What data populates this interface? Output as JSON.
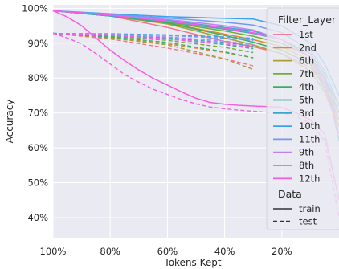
{
  "chart_data": {
    "type": "line",
    "title": "",
    "xlabel": "Tokens Kept",
    "ylabel": "Accuracy",
    "xlim": [
      100,
      0
    ],
    "ylim": [
      34,
      101
    ],
    "x_ticks": [
      100,
      80,
      60,
      40,
      20
    ],
    "x_tick_labels": [
      "100%",
      "80%",
      "60%",
      "40%",
      "20%"
    ],
    "y_ticks": [
      40,
      50,
      60,
      70,
      80,
      90,
      100
    ],
    "y_tick_labels": [
      "40%",
      "50%",
      "60%",
      "70%",
      "80%",
      "90%",
      "100%"
    ],
    "grid": true,
    "legend_position": "right",
    "legend_title": "Filter_Layer",
    "style_legend_title": "Data",
    "style_legend": [
      {
        "label": "train",
        "dash": "solid"
      },
      {
        "label": "test",
        "dash": "dashed"
      }
    ],
    "colors": {
      "background": "#eaeaf2",
      "grid": "#ffffff"
    },
    "series": [
      {
        "name": "1st",
        "color": "#f77189",
        "train": {
          "x": [
            100,
            80,
            60,
            40,
            30,
            20,
            10,
            5,
            0
          ],
          "y": [
            99.3,
            97.8,
            94.5,
            90.5,
            89.0,
            87,
            83,
            78,
            70
          ]
        },
        "test": {
          "x": [
            100,
            80,
            60,
            40,
            30
          ],
          "y": [
            92.8,
            91.2,
            88.6,
            85.5,
            83.5
          ]
        }
      },
      {
        "name": "2nd",
        "color": "#dc8932",
        "train": {
          "x": [
            100,
            80,
            60,
            40,
            30,
            20,
            10,
            5,
            0
          ],
          "y": [
            99.3,
            97.8,
            95.8,
            92.6,
            91.0,
            89,
            85,
            78,
            66
          ]
        },
        "test": {
          "x": [
            100,
            80,
            60,
            40,
            30
          ],
          "y": [
            92.8,
            91.6,
            89.8,
            87.3,
            85.8
          ]
        }
      },
      {
        "name": "6th",
        "color": "#ae9d31",
        "train": {
          "x": [
            100,
            80,
            60,
            40,
            30,
            20,
            10,
            5,
            0
          ],
          "y": [
            99.3,
            97.8,
            95.5,
            91.5,
            89.5,
            87,
            82,
            76,
            66
          ]
        },
        "test": {
          "x": [
            100,
            80,
            60,
            40,
            30
          ],
          "y": [
            92.8,
            91.5,
            89.5,
            85.5,
            82.5
          ]
        }
      },
      {
        "name": "7th",
        "color": "#77ab31",
        "train": {
          "x": [
            100,
            80,
            60,
            40,
            30,
            20,
            10,
            5,
            0
          ],
          "y": [
            99.3,
            97.8,
            96.0,
            93.5,
            92.0,
            90,
            86,
            80,
            70
          ]
        },
        "test": {
          "x": [
            100,
            80,
            60,
            40,
            30
          ],
          "y": [
            92.8,
            92.0,
            90.8,
            88.8,
            87.3
          ]
        }
      },
      {
        "name": "4th",
        "color": "#33b166",
        "train": {
          "x": [
            100,
            80,
            60,
            40,
            30,
            20,
            10,
            5,
            0
          ],
          "y": [
            99.3,
            97.8,
            95.8,
            92.2,
            90.3,
            88,
            84,
            77,
            68
          ]
        },
        "test": {
          "x": [
            100,
            80,
            60,
            40,
            30
          ],
          "y": [
            92.8,
            91.8,
            90.2,
            87.5,
            85.8
          ]
        }
      },
      {
        "name": "5th",
        "color": "#36ada4",
        "train": {
          "x": [
            100,
            80,
            60,
            40,
            30,
            20,
            10,
            5,
            0
          ],
          "y": [
            99.3,
            97.8,
            96.2,
            94.0,
            92.8,
            91,
            87,
            81,
            62
          ]
        },
        "test": {
          "x": [
            100,
            80,
            60,
            40,
            30
          ],
          "y": [
            92.8,
            92.2,
            91.2,
            89.6,
            88.4
          ]
        }
      },
      {
        "name": "3rd",
        "color": "#38a9c5",
        "train": {
          "x": [
            100,
            80,
            60,
            40,
            30,
            20,
            10,
            5,
            0
          ],
          "y": [
            99.3,
            97.8,
            96.5,
            94.5,
            93.5,
            91,
            86,
            80,
            72
          ]
        },
        "test": {
          "x": [
            100,
            80,
            60,
            40,
            30
          ],
          "y": [
            92.8,
            92.4,
            91.5,
            90.2,
            89.2
          ]
        }
      },
      {
        "name": "10th",
        "color": "#3ba3ec",
        "train": {
          "x": [
            100,
            80,
            60,
            40,
            30,
            20,
            10,
            5,
            0
          ],
          "y": [
            99.3,
            98.4,
            97.6,
            97.1,
            96.9,
            95,
            90,
            84,
            75
          ]
        },
        "test": {
          "x": [
            100,
            80,
            60,
            40,
            30
          ],
          "y": [
            92.8,
            92.7,
            92.4,
            91.8,
            91.4
          ]
        }
      },
      {
        "name": "11th",
        "color": "#6e9bf4",
        "train": {
          "x": [
            100,
            80,
            60,
            40,
            30,
            20,
            10,
            5,
            0
          ],
          "y": [
            99.3,
            98.2,
            97.2,
            96.0,
            95.2,
            93,
            88,
            82,
            72
          ]
        },
        "test": {
          "x": [
            100,
            80,
            60,
            40,
            30
          ],
          "y": [
            92.8,
            92.6,
            92.2,
            91.4,
            90.8
          ]
        }
      },
      {
        "name": "9th",
        "color": "#bb83f4",
        "train": {
          "x": [
            100,
            80,
            60,
            40,
            30,
            20,
            10,
            5,
            0
          ],
          "y": [
            99.3,
            98.0,
            96.8,
            95.0,
            93.8,
            91,
            86,
            79,
            68
          ]
        },
        "test": {
          "x": [
            100,
            80,
            60,
            40,
            30
          ],
          "y": [
            92.8,
            92.5,
            91.8,
            90.6,
            89.6
          ]
        }
      },
      {
        "name": "8th",
        "color": "#f45deb",
        "train": {
          "x": [
            100,
            80,
            60,
            40,
            30,
            20,
            10,
            5,
            0
          ],
          "y": [
            99.3,
            98.0,
            96.3,
            94.3,
            93.0,
            91,
            86,
            78,
            64
          ]
        },
        "test": {
          "x": [
            100,
            80,
            60,
            40,
            30
          ],
          "y": [
            92.8,
            92.3,
            91.2,
            89.8,
            88.8
          ]
        }
      },
      {
        "name": "12th",
        "color": "#f561dd",
        "train": {
          "x": [
            100,
            95,
            90,
            85,
            80,
            75,
            70,
            65,
            60,
            55,
            50,
            45,
            40,
            35,
            30,
            25,
            20,
            15,
            10,
            5,
            0
          ],
          "y": [
            99.3,
            97.5,
            95.0,
            91.5,
            88.0,
            85.0,
            82.3,
            79.9,
            78.0,
            76.0,
            74.2,
            73.0,
            72.5,
            72.2,
            72.0,
            71.8,
            71.6,
            70.0,
            68.0,
            64.0,
            45.0
          ]
        },
        "test": {
          "x": [
            100,
            95,
            90,
            85,
            80,
            75,
            70,
            65,
            60,
            55,
            50,
            45,
            40,
            35,
            30,
            25,
            20,
            15,
            10,
            5,
            0
          ],
          "y": [
            92.8,
            91.5,
            89.8,
            87.0,
            84.0,
            81.0,
            78.8,
            76.8,
            75.3,
            73.8,
            72.6,
            71.7,
            71.2,
            70.8,
            70.5,
            70.2,
            70.0,
            69.0,
            67.0,
            62.0,
            40.0
          ]
        }
      }
    ]
  }
}
